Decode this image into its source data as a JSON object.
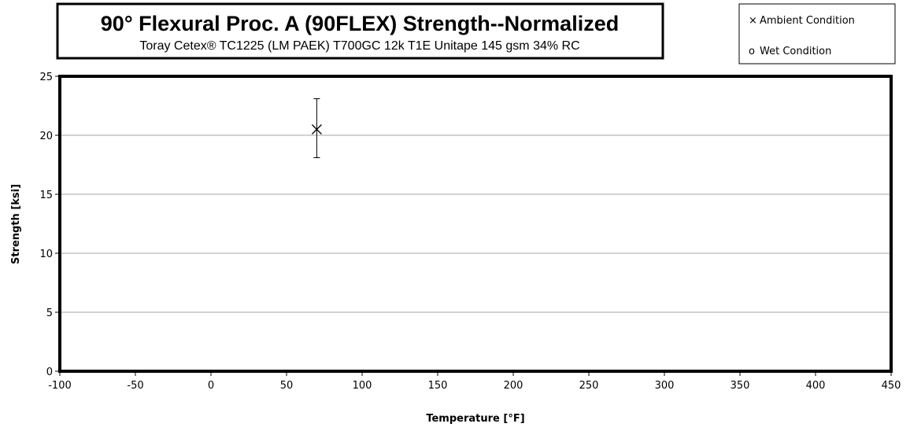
{
  "chart_data": {
    "type": "scatter",
    "title": "90° Flexural Proc. A (90FLEX) Strength--Normalized",
    "subtitle": "Toray  Cetex® TC1225  (LM PAEK) T700GC  12k  T1E  Unitape  145 gsm 34% RC",
    "xlabel": "Temperature [°F]",
    "ylabel": "Strength [ksi]",
    "xlim": [
      -100,
      450
    ],
    "ylim": [
      0,
      25
    ],
    "x_ticks": [
      -100,
      -50,
      0,
      50,
      100,
      150,
      200,
      250,
      300,
      350,
      400,
      450
    ],
    "y_ticks": [
      0,
      5,
      10,
      15,
      20,
      25
    ],
    "grid": "horizontal",
    "legend_position": "top-right",
    "series": [
      {
        "name": "Ambient Condition",
        "marker": "x",
        "points": [
          {
            "x": 70,
            "y": 20.5,
            "y_min": 18.1,
            "y_max": 23.1
          }
        ]
      },
      {
        "name": "Wet Condition",
        "marker": "o",
        "points": []
      }
    ]
  },
  "legend": {
    "items": [
      {
        "symbol": "×",
        "label": "Ambient Condition"
      },
      {
        "symbol": "o",
        "label": "Wet Condition"
      }
    ]
  }
}
